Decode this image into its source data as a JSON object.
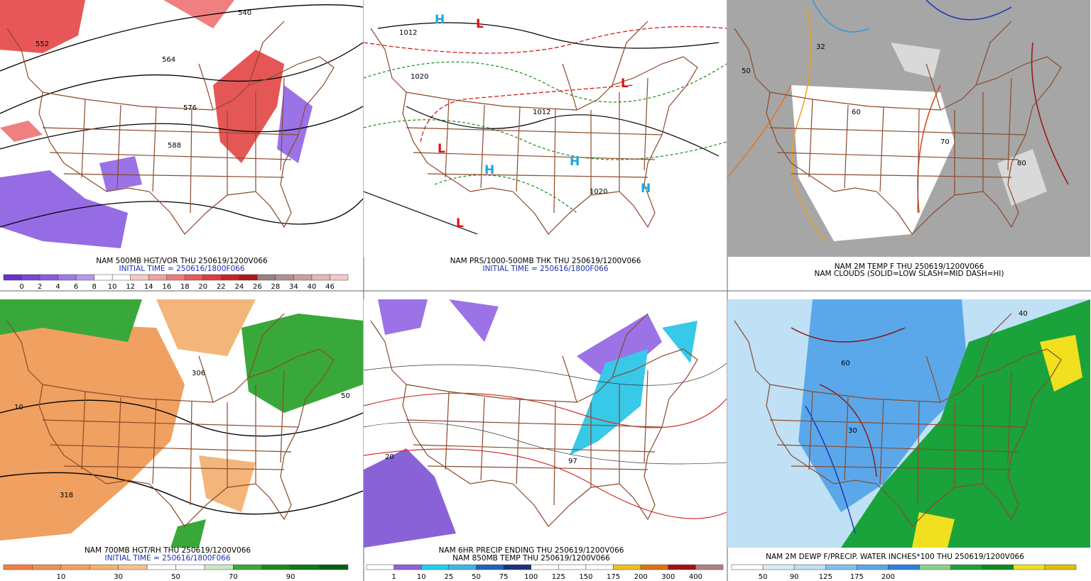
{
  "panels": [
    {
      "caption": "NAM 500MB HGT/VOR THU 250619/1200V066",
      "subcaption": "INITIAL TIME = 250616/1800F066",
      "colorbar": [
        "0",
        "2",
        "4",
        "6",
        "8",
        "10",
        "12",
        "14",
        "16",
        "18",
        "20",
        "22",
        "24",
        "26",
        "28",
        "34",
        "40",
        "46"
      ],
      "labels": [
        "540",
        "552",
        "564",
        "576",
        "588"
      ]
    },
    {
      "caption": "NAM PRS/1000-500MB THK THU 250619/1200V066",
      "subcaption": "INITIAL TIME = 250616/1800F066",
      "labels": [
        "1012",
        "1020",
        "1012",
        "1020",
        "H",
        "L"
      ]
    },
    {
      "caption": "NAM 2M TEMP F THU 250619/1200V066",
      "subcaption": "NAM CLOUDS (SOLID=LOW SLASH=MID DASH=HI)",
      "labels": [
        "50",
        "60",
        "70",
        "80",
        "32"
      ]
    },
    {
      "caption": "NAM 700MB HGT/RH THU 250619/1200V066",
      "subcaption": "INITIAL TIME = 250616/1800F066",
      "colorbar": [
        "10",
        "30",
        "50",
        "70",
        "90"
      ],
      "labels": [
        "318",
        "306",
        "10",
        "50"
      ]
    },
    {
      "caption": "NAM 6HR PRECIP ENDING THU 250619/1200V066",
      "subcaption": "NAM 850MB TEMP THU 250619/1200V066",
      "colorbar": [
        "1",
        "10",
        "25",
        "50",
        "75",
        "100",
        "125",
        "150",
        "175",
        "200",
        "300",
        "400"
      ],
      "labels": [
        "20",
        "97"
      ]
    },
    {
      "caption": "NAM 2M DEWP F/PRECIP. WATER INCHES*100 THU 250619/1200V066",
      "colorbar": [
        "50",
        "90",
        "125",
        "175",
        "200"
      ],
      "labels": [
        "40",
        "60",
        "30"
      ]
    }
  ]
}
